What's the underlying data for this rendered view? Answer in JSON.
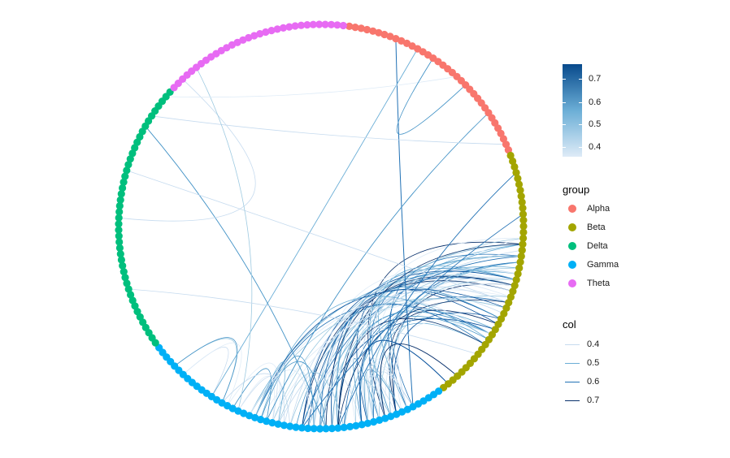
{
  "colorbar": {
    "ticks": [
      "0.7",
      "0.6",
      "0.5",
      "0.4"
    ],
    "gradient_top": "#084a8c",
    "gradient_bottom": "#deebf7"
  },
  "group_legend": {
    "title": "group",
    "items": [
      {
        "label": "Alpha",
        "color": "#f8766d"
      },
      {
        "label": "Beta",
        "color": "#a3a500"
      },
      {
        "label": "Delta",
        "color": "#00bf7d"
      },
      {
        "label": "Gamma",
        "color": "#00b0f6"
      },
      {
        "label": "Theta",
        "color": "#e76bf3"
      }
    ]
  },
  "col_legend": {
    "title": "col",
    "items": [
      {
        "label": "0.4",
        "color": "#c6dbef"
      },
      {
        "label": "0.5",
        "color": "#6baed6"
      },
      {
        "label": "0.6",
        "color": "#2171b5"
      },
      {
        "label": "0.7",
        "color": "#08306b"
      }
    ]
  },
  "diagram": {
    "node_groups": [
      {
        "group": "Alpha",
        "count": 36,
        "color": "#f8766d"
      },
      {
        "group": "Beta",
        "count": 44,
        "color": "#a3a500"
      },
      {
        "group": "Gamma",
        "count": 53,
        "color": "#00b0f6"
      },
      {
        "group": "Delta",
        "count": 46,
        "color": "#00bf7d"
      },
      {
        "group": "Theta",
        "count": 32,
        "color": "#e76bf3"
      }
    ]
  }
}
